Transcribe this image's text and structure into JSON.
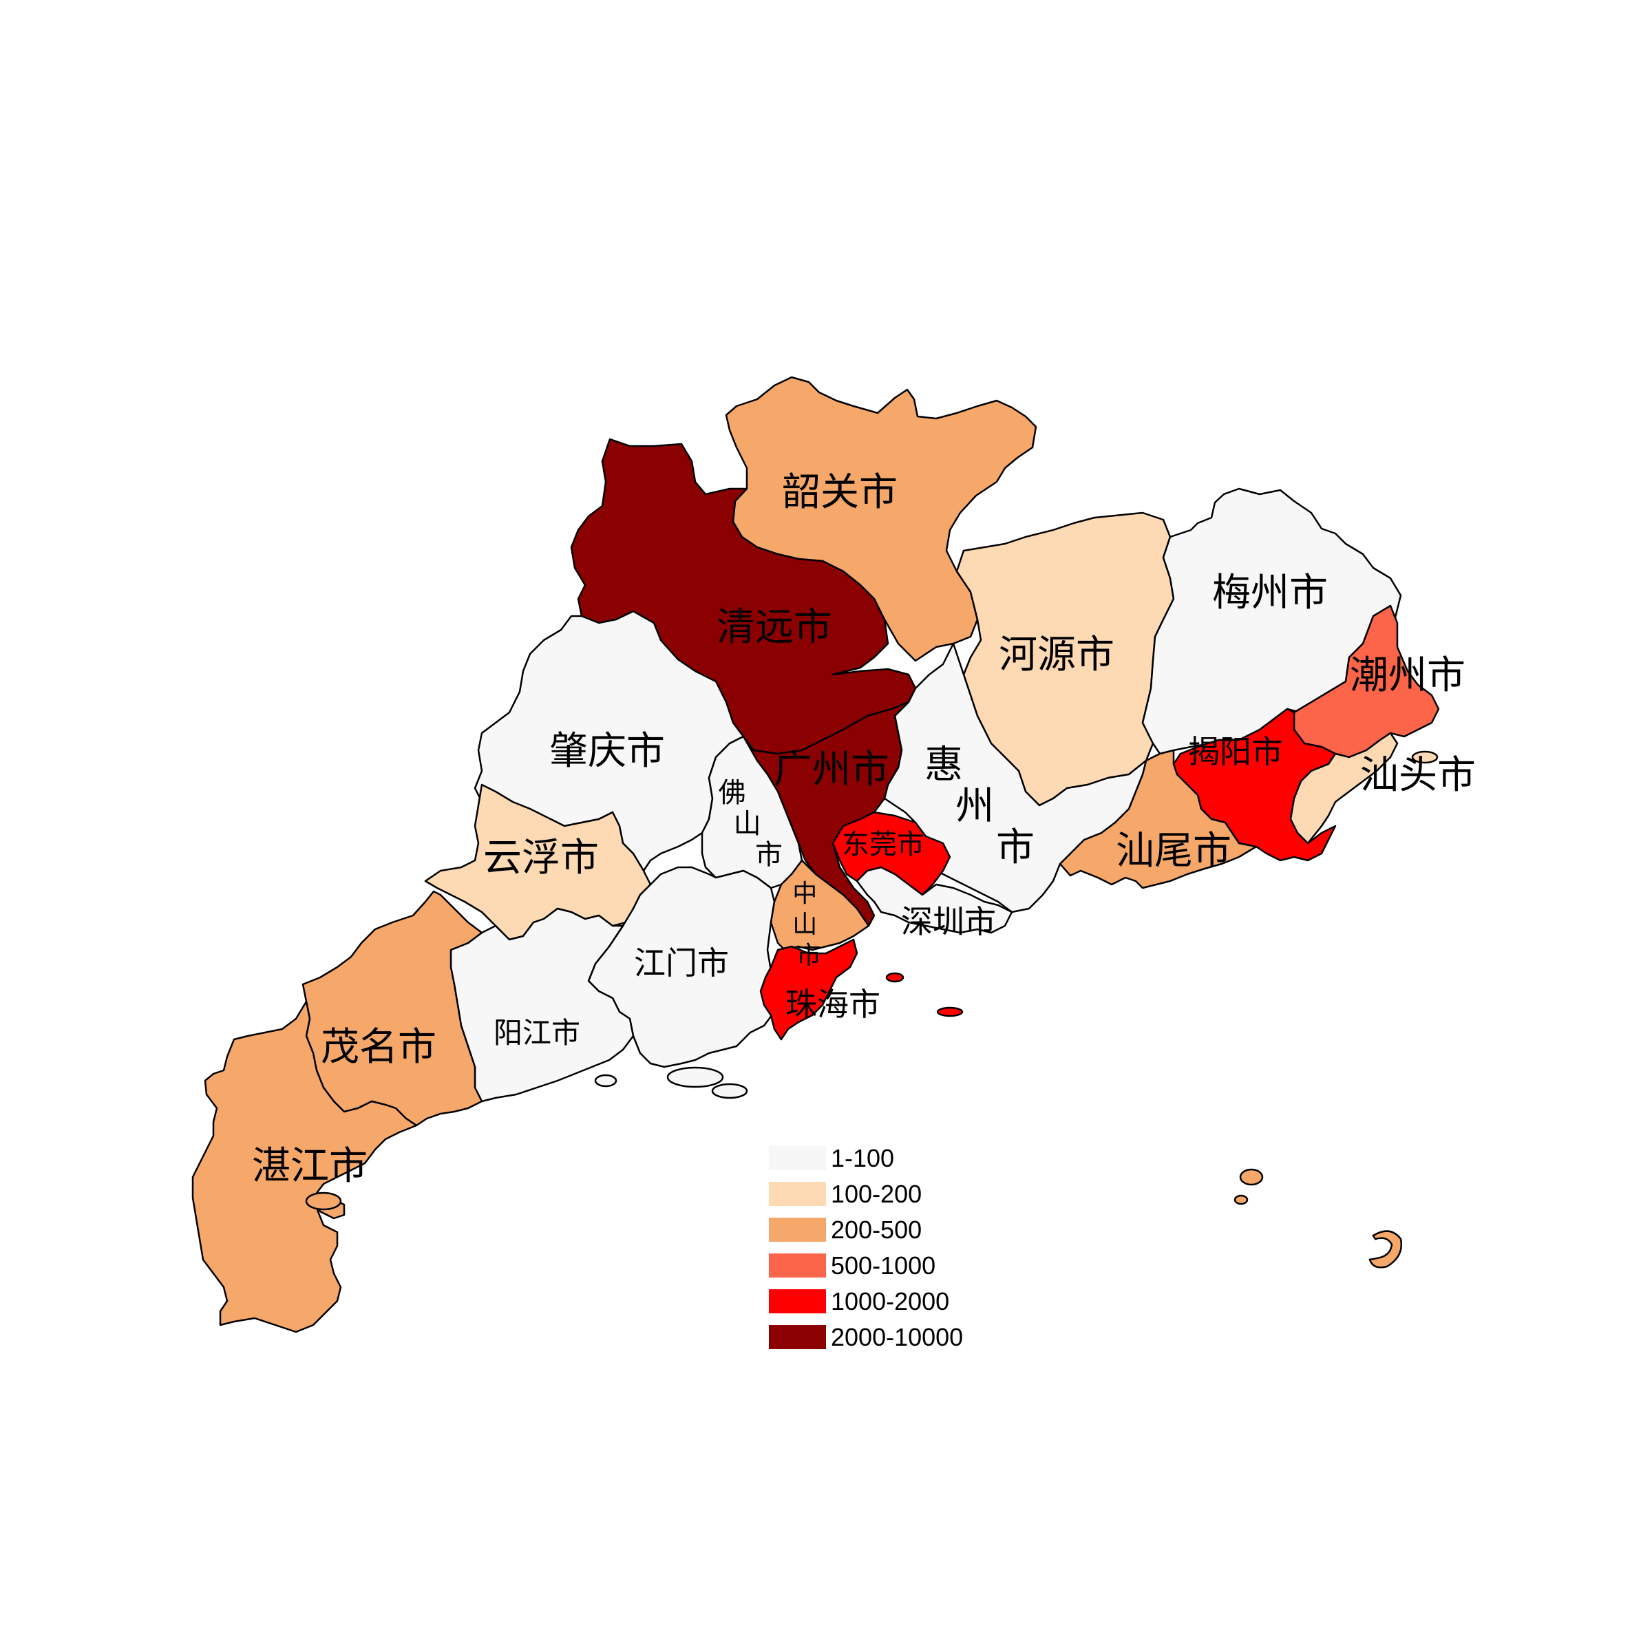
{
  "bins": [
    {
      "range": "1-100",
      "color": "#f7f7f7"
    },
    {
      "range": "100-200",
      "color": "#fdd9b4"
    },
    {
      "range": "200-500",
      "color": "#f6a86a"
    },
    {
      "range": "500-1000",
      "color": "#fc6549"
    },
    {
      "range": "1000-2000",
      "color": "#ff0000"
    },
    {
      "range": "2000-10000",
      "color": "#8b0000"
    }
  ],
  "cities": [
    {
      "id": "shaoguan",
      "name": "韶关市",
      "bin": "200-500"
    },
    {
      "id": "qingyuan",
      "name": "清远市",
      "bin": "2000-10000"
    },
    {
      "id": "heyuan",
      "name": "河源市",
      "bin": "100-200"
    },
    {
      "id": "meizhou",
      "name": "梅州市",
      "bin": "1-100"
    },
    {
      "id": "chaozhou",
      "name": "潮州市",
      "bin": "500-1000"
    },
    {
      "id": "jieyang",
      "name": "揭阳市",
      "bin": "1000-2000"
    },
    {
      "id": "shantou",
      "name": "汕头市",
      "bin": "100-200"
    },
    {
      "id": "shanwei",
      "name": "汕尾市",
      "bin": "200-500"
    },
    {
      "id": "huizhou",
      "name": "惠州市",
      "bin": "1-100"
    },
    {
      "id": "guangzhou",
      "name": "广州市",
      "bin": "2000-10000"
    },
    {
      "id": "dongguan",
      "name": "东莞市",
      "bin": "1000-2000"
    },
    {
      "id": "shenzhen",
      "name": "深圳市",
      "bin": "1-100"
    },
    {
      "id": "foshan",
      "name": "佛山市",
      "bin": "1-100"
    },
    {
      "id": "zhaoqing",
      "name": "肇庆市",
      "bin": "1-100"
    },
    {
      "id": "yunfu",
      "name": "云浮市",
      "bin": "100-200"
    },
    {
      "id": "jiangmen",
      "name": "江门市",
      "bin": "1-100"
    },
    {
      "id": "zhongshan",
      "name": "中山市",
      "bin": "200-500"
    },
    {
      "id": "zhuhai",
      "name": "珠海市",
      "bin": "1000-2000"
    },
    {
      "id": "yangjiang",
      "name": "阳江市",
      "bin": "1-100"
    },
    {
      "id": "maoming",
      "name": "茂名市",
      "bin": "200-500"
    },
    {
      "id": "zhanjiang",
      "name": "湛江市",
      "bin": "200-500"
    }
  ]
}
